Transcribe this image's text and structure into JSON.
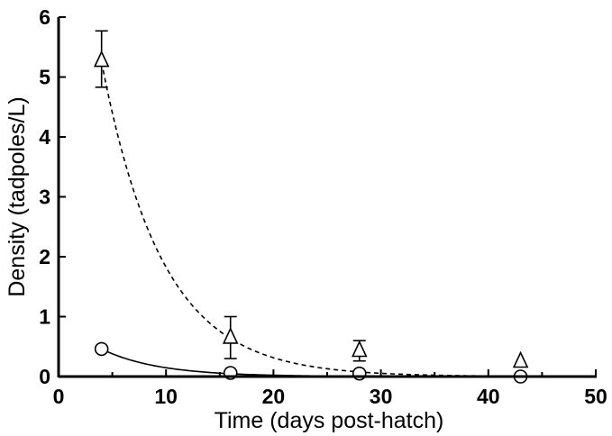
{
  "chart_data": {
    "type": "scatter",
    "xlabel": "Time (days post-hatch)",
    "ylabel": "Density (tadpoles/L)",
    "xlim": [
      0,
      50
    ],
    "ylim": [
      0,
      6
    ],
    "xticks": [
      0,
      10,
      20,
      30,
      40,
      50
    ],
    "yticks": [
      0,
      1,
      2,
      3,
      4,
      5,
      6
    ],
    "grid": false,
    "legend": "none",
    "series": [
      {
        "marker": "triangle",
        "fit_line": "dashed",
        "fit": {
          "a": 5.25,
          "k": 0.176,
          "x0": 4
        },
        "points": [
          {
            "x": 4,
            "y": 5.27,
            "err_low": 4.83,
            "err_high": 5.77
          },
          {
            "x": 16,
            "y": 0.65,
            "err_low": 0.3,
            "err_high": 1.0
          },
          {
            "x": 28,
            "y": 0.43,
            "err_low": 0.26,
            "err_high": 0.6
          },
          {
            "x": 43,
            "y": 0.25,
            "err_low": null,
            "err_high": null
          }
        ]
      },
      {
        "marker": "circle",
        "fit_line": "solid",
        "fit": {
          "a": 0.46,
          "k": 0.19,
          "x0": 4
        },
        "points": [
          {
            "x": 4,
            "y": 0.46
          },
          {
            "x": 16,
            "y": 0.06
          },
          {
            "x": 28,
            "y": 0.05
          },
          {
            "x": 43,
            "y": 0.0
          }
        ]
      }
    ]
  }
}
